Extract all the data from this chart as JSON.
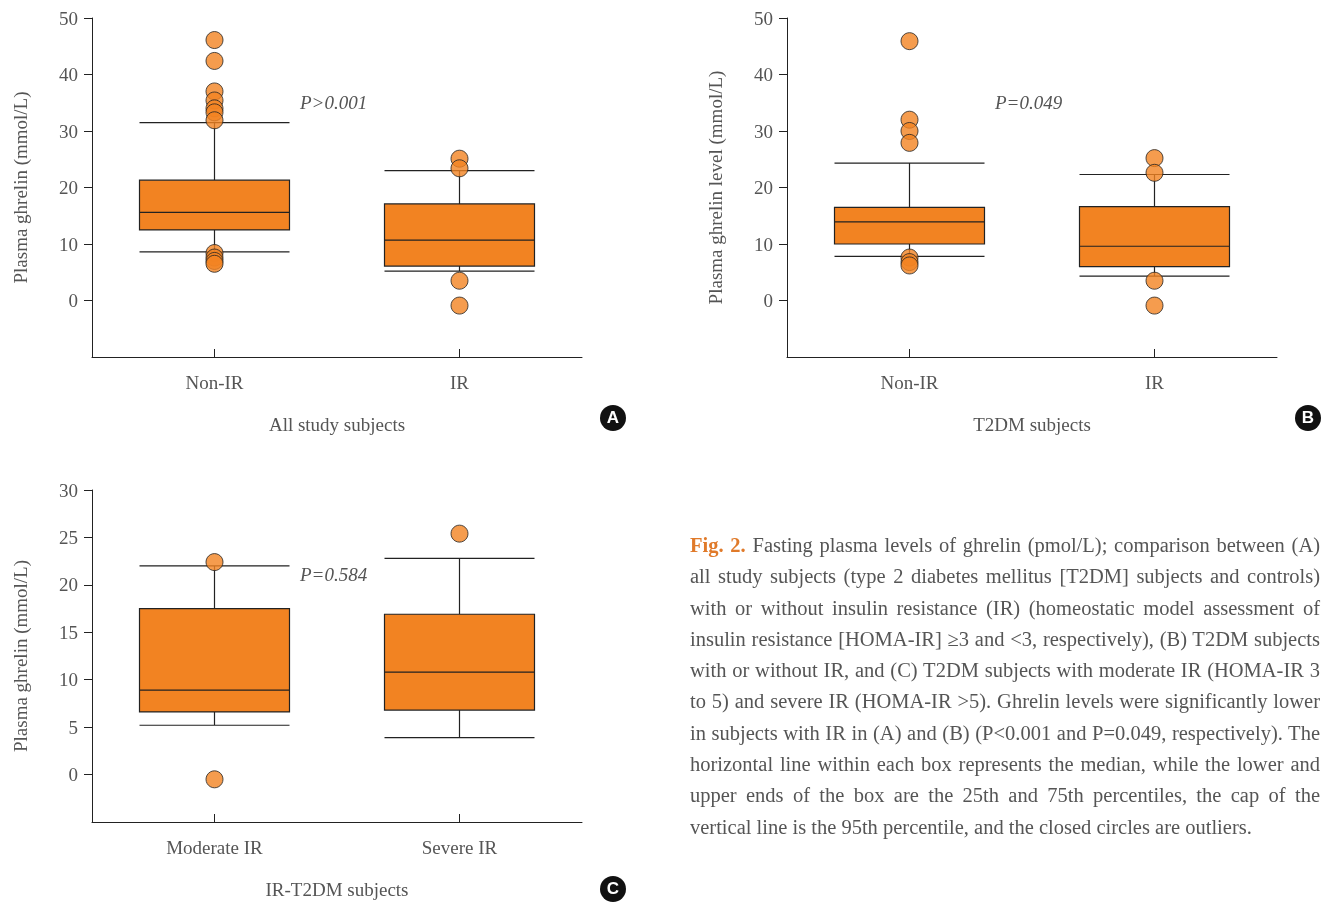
{
  "chart_data": [
    {
      "type": "box",
      "categories": [
        "Non-IR",
        "IR"
      ],
      "xlabel": "All study subjects",
      "ylabel": "Plasma ghrelin (mmol/L)",
      "ylim": [
        -10,
        50
      ],
      "yticks": [
        0,
        10,
        20,
        30,
        40,
        50
      ],
      "grid": false,
      "color": "#f28322",
      "annotations": [
        "P>0.001",
        "A"
      ],
      "boxes": [
        {
          "low": 8.6,
          "q1": 12.5,
          "median": 15.6,
          "q3": 21.3,
          "high": 31.5,
          "outliers": [
            46.1,
            42.4,
            37.0,
            35.4,
            34.0,
            33.3,
            31.9,
            8.4,
            7.6,
            7.0,
            6.5
          ]
        },
        {
          "low": 5.2,
          "q1": 6.1,
          "median": 10.7,
          "q3": 17.1,
          "high": 23.0,
          "outliers": [
            25.1,
            23.4,
            3.5,
            -0.9
          ]
        }
      ]
    },
    {
      "type": "box",
      "categories": [
        "Non-IR",
        "IR"
      ],
      "xlabel": "T2DM subjects",
      "ylabel": "Plasma ghrelin level (mmol/L)",
      "ylim": [
        -10,
        50
      ],
      "yticks": [
        0,
        10,
        20,
        30,
        40,
        50
      ],
      "grid": false,
      "color": "#f28322",
      "annotations": [
        "P=0.049",
        "B"
      ],
      "boxes": [
        {
          "low": 7.8,
          "q1": 10.0,
          "median": 13.9,
          "q3": 16.5,
          "high": 24.3,
          "outliers": [
            45.9,
            32.0,
            30.0,
            27.9,
            7.6,
            6.8,
            6.2
          ]
        },
        {
          "low": 4.3,
          "q1": 6.0,
          "median": 9.6,
          "q3": 16.6,
          "high": 22.3,
          "outliers": [
            25.2,
            22.6,
            3.5,
            -0.9
          ]
        }
      ]
    },
    {
      "type": "box",
      "categories": [
        "Moderate IR",
        "Severe IR"
      ],
      "xlabel": "IR-T2DM subjects",
      "ylabel": "Plasma ghrelin (mmol/L)",
      "ylim": [
        -5,
        30
      ],
      "yticks": [
        0,
        5,
        10,
        15,
        20,
        25,
        30
      ],
      "grid": false,
      "color": "#f28322",
      "annotations": [
        "P=0.584",
        "C"
      ],
      "boxes": [
        {
          "low": 5.2,
          "q1": 6.6,
          "median": 8.9,
          "q3": 17.5,
          "high": 22.0,
          "outliers": [
            22.4,
            -0.5
          ]
        },
        {
          "low": 3.9,
          "q1": 6.8,
          "median": 10.8,
          "q3": 16.9,
          "high": 22.8,
          "outliers": [
            25.4
          ]
        }
      ]
    },
    {
      "type": "other",
      "annotations": [
        "Fig. 2.",
        "Fasting plasma levels of ghrelin (pmol/L); comparison between (A) all study subjects (type 2 diabetes mellitus [T2DM] subjects and controls) with or without insulin resistance (IR) (homeostatic model assessment of insulin resistance [HOMA-IR] ≥3 and <3, respectively), (B) T2DM subjects with or without IR, and (C) T2DM subjects with moderate IR (HOMA-IR 3 to 5) and severe IR (HOMA-IR >5). Ghrelin levels were significantly lower in subjects with IR in (A) and (B) (P<0.001 and P=0.049, respectively). The horizontal line within each box represents the median, while the lower and upper ends of the box are the 25th and 75th percentiles, the cap of the vertical line is the 95th percentile, and the closed circles are outliers."
      ]
    }
  ]
}
